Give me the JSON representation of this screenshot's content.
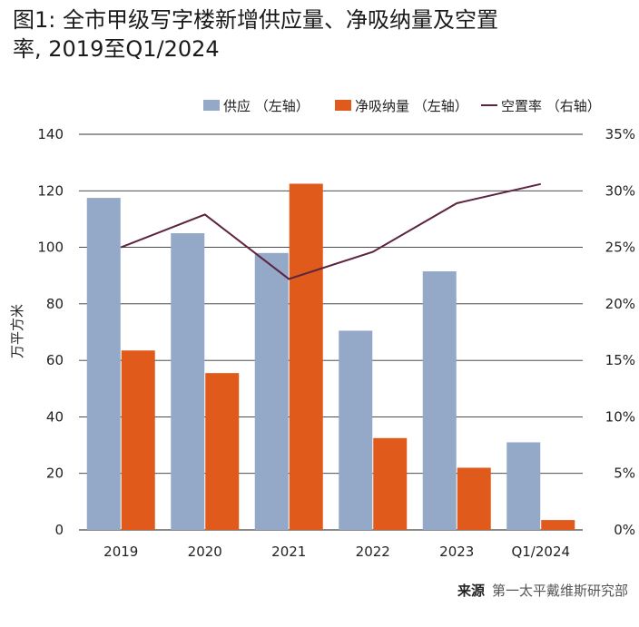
{
  "title_line1": "图1: 全市甲级写字楼新增供应量、净吸纳量及空置",
  "title_line2": "率, 2019至Q1/2024",
  "source_label": "来源",
  "source_text": "第一太平戴维斯研究部",
  "chart_data": {
    "type": "bar",
    "categories": [
      "2019",
      "2020",
      "2021",
      "2022",
      "2023",
      "Q1/2024"
    ],
    "series": [
      {
        "name": "供应 （左轴）",
        "type": "bar",
        "axis": "left",
        "color": "#94a8c8",
        "values": [
          117.5,
          105,
          98,
          70.5,
          91.5,
          31
        ]
      },
      {
        "name": "净吸纳量 （左轴）",
        "type": "bar",
        "axis": "left",
        "color": "#e05a1c",
        "values": [
          63.5,
          55.5,
          122.5,
          32.5,
          22,
          3.5
        ]
      },
      {
        "name": "空置率 （右轴）",
        "type": "line",
        "axis": "right",
        "color": "#5c2440",
        "values": [
          25.0,
          27.9,
          22.2,
          24.6,
          28.9,
          30.6
        ]
      }
    ],
    "ylabel": "万平方米",
    "ylim": [
      0,
      140
    ],
    "yticks": [
      "0",
      "20",
      "40",
      "60",
      "80",
      "100",
      "120",
      "140"
    ],
    "y2lim": [
      0,
      35
    ],
    "y2ticks": [
      "0%",
      "5%",
      "10%",
      "15%",
      "20%",
      "25%",
      "30%",
      "35%"
    ],
    "grid": true,
    "legend_position": "top-right"
  }
}
